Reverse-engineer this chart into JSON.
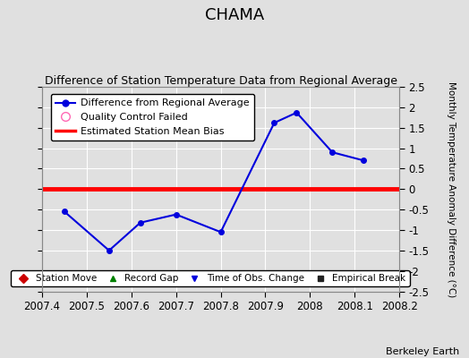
{
  "title": "CHAMA",
  "subtitle": "Difference of Station Temperature Data from Regional Average",
  "ylabel_right": "Monthly Temperature Anomaly Difference (°C)",
  "xlim": [
    2007.4,
    2008.2
  ],
  "ylim": [
    -2.5,
    2.5
  ],
  "xticks": [
    2007.4,
    2007.5,
    2007.6,
    2007.7,
    2007.8,
    2007.9,
    2008.0,
    2008.1,
    2008.2
  ],
  "xtick_labels": [
    "2007.4",
    "2007.5",
    "2007.6",
    "2007.7",
    "2007.8",
    "2007.9",
    "2008",
    "2008.1",
    "2008.2"
  ],
  "yticks": [
    -2.5,
    -2,
    -1.5,
    -1,
    -0.5,
    0,
    0.5,
    1,
    1.5,
    2,
    2.5
  ],
  "line_x": [
    2007.45,
    2007.55,
    2007.62,
    2007.7,
    2007.8,
    2007.92,
    2007.97,
    2008.05,
    2008.12
  ],
  "line_y": [
    -0.55,
    -1.5,
    -0.82,
    -0.62,
    -1.05,
    1.62,
    1.87,
    0.9,
    0.7
  ],
  "line_color": "#0000dd",
  "marker_color": "#0000dd",
  "bias_y": 0.0,
  "bias_color": "#ff0000",
  "bias_linewidth": 3.5,
  "background_color": "#e0e0e0",
  "plot_bg_color": "#e0e0e0",
  "grid_color": "#ffffff",
  "title_fontsize": 13,
  "subtitle_fontsize": 9,
  "watermark": "Berkeley Earth",
  "legend1_labels": [
    "Difference from Regional Average",
    "Quality Control Failed",
    "Estimated Station Mean Bias"
  ],
  "legend2_labels": [
    "Station Move",
    "Record Gap",
    "Time of Obs. Change",
    "Empirical Break"
  ],
  "legend2_colors": [
    "#cc0000",
    "#008000",
    "#0000dd",
    "#222222"
  ],
  "legend2_markers": [
    "D",
    "^",
    "v",
    "s"
  ]
}
